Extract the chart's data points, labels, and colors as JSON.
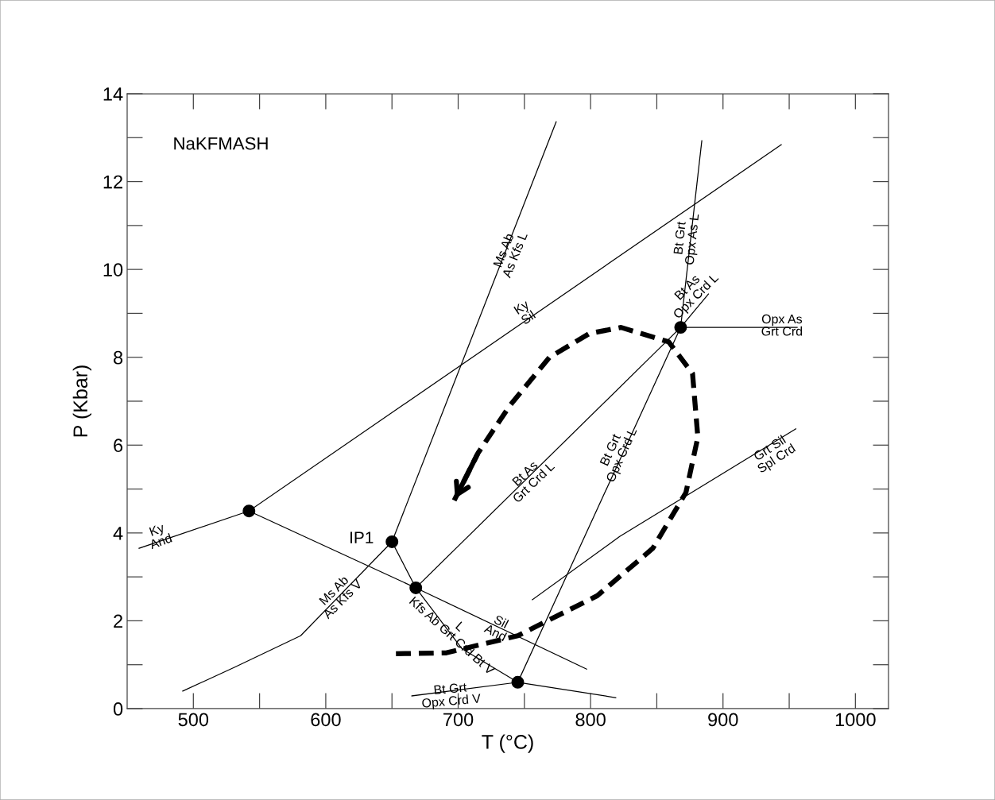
{
  "chart_data": {
    "type": "line",
    "xlabel": "T (°C)",
    "ylabel": "P (Kbar)",
    "xlim": [
      450,
      1025
    ],
    "xticks": [
      500,
      600,
      700,
      800,
      900,
      1000
    ],
    "ylim": [
      0,
      14
    ],
    "yticks": [
      0,
      2,
      4,
      6,
      8,
      10,
      12,
      14
    ],
    "grid": false,
    "legend": false,
    "series": [
      {
        "color": "#000000",
        "x": [
          459,
          542
        ],
        "values": [
          3.65,
          4.5
        ]
      },
      {
        "color": "#000000",
        "x": [
          542,
          944
        ],
        "values": [
          4.5,
          12.84
        ]
      },
      {
        "color": "#000000",
        "x": [
          542,
          668,
          797
        ],
        "values": [
          4.5,
          2.75,
          0.9
        ]
      },
      {
        "color": "#000000",
        "x": [
          492,
          531,
          581,
          650
        ],
        "values": [
          0.4,
          0.94,
          1.66,
          3.8
        ]
      },
      {
        "color": "#000000",
        "x": [
          650,
          774
        ],
        "values": [
          3.8,
          13.36
        ]
      },
      {
        "color": "#000000",
        "x": [
          650,
          668
        ],
        "values": [
          3.8,
          2.75
        ]
      },
      {
        "color": "#000000",
        "x": [
          668,
          703,
          745,
          819
        ],
        "values": [
          2.75,
          1.36,
          0.6,
          0.25
        ]
      },
      {
        "color": "#000000",
        "x": [
          668,
          868,
          889
        ],
        "values": [
          2.75,
          8.68,
          9.44
        ]
      },
      {
        "color": "#000000",
        "x": [
          868,
          884
        ],
        "values": [
          8.68,
          12.93
        ]
      },
      {
        "color": "#000000",
        "x": [
          868,
          956
        ],
        "values": [
          8.68,
          8.68
        ]
      },
      {
        "color": "#000000",
        "x": [
          745,
          868
        ],
        "values": [
          0.6,
          8.68
        ]
      },
      {
        "color": "#000000",
        "x": [
          665,
          745
        ],
        "values": [
          0.29,
          0.6
        ]
      },
      {
        "color": "#000000",
        "x": [
          756,
          822,
          955
        ],
        "values": [
          2.48,
          3.92,
          6.37
        ]
      },
      {
        "color": "#000000",
        "line_style": "dashed",
        "x": [
          653,
          691,
          745,
          805,
          847,
          872,
          881,
          877,
          859,
          823,
          799,
          769,
          739,
          715,
          697
        ],
        "values": [
          1.25,
          1.27,
          1.66,
          2.57,
          3.65,
          4.92,
          6.18,
          7.63,
          8.35,
          8.68,
          8.54,
          8.0,
          6.9,
          5.82,
          4.74
        ]
      },
      {
        "type": "scatter",
        "marker": "circle",
        "color": "#000000",
        "x": [
          542,
          650,
          668,
          745,
          868
        ],
        "values": [
          4.5,
          3.8,
          2.75,
          0.6,
          8.68
        ]
      }
    ],
    "annotations": [
      "NaKFMASH",
      "IP1",
      "Ky\nAnd",
      "Ky\nSil",
      "Ms Ab\nAs Kfs L",
      "Bt Grt\nOpx As L",
      "Bt As\nOpx Crd L",
      "Opx As\nGrt Crd",
      "Bt As\nGrt Crd L",
      "Bt Grt\nOpx Crd L",
      "Grt Sil\nSpl Crd",
      "Ms Ab\nAs Kfs V",
      "Sil\nAnd",
      "L\nKfs Ab Grt Crd Bt V",
      "Bt Grt\nOpx Crd V"
    ]
  }
}
